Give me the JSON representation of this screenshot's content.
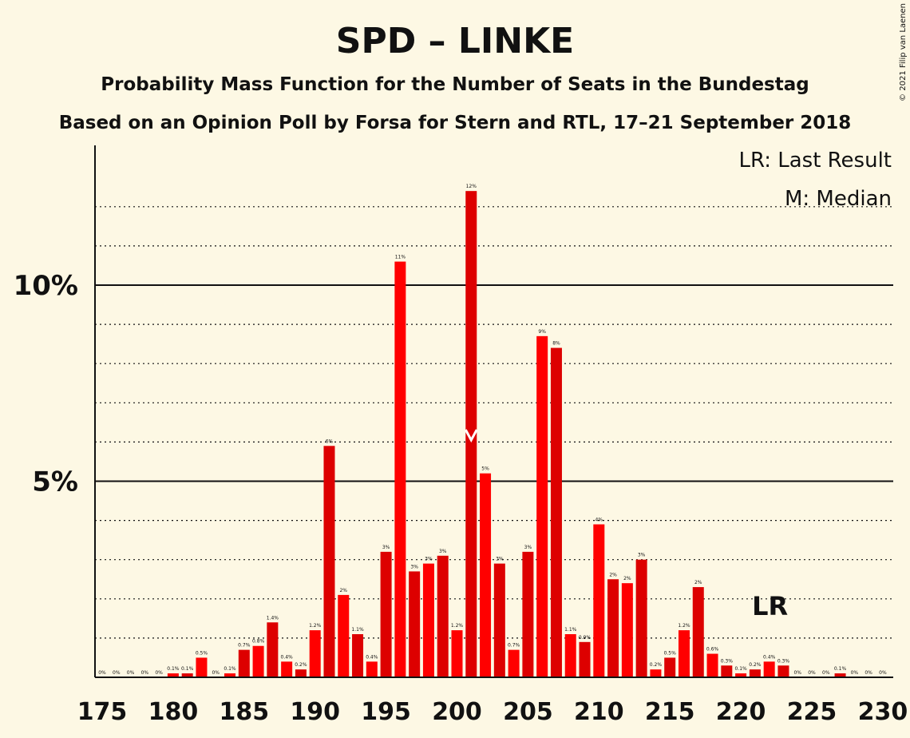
{
  "title": "SPD – LINKE",
  "subtitle1": "Probability Mass Function for the Number of Seats in the Bundestag",
  "subtitle2": "Based on an Opinion Poll by Forsa for Stern and RTL, 17–21 September 2018",
  "copyright": "© 2021 Filip van Laenen",
  "legend": {
    "last_result": "LR: Last Result",
    "median": "M: Median"
  },
  "last_result_label": "LR",
  "colors": {
    "background": "#fdf8e4",
    "bar_even": "#ff0000",
    "bar_odd": "#dd0000",
    "text": "#111111"
  },
  "chart_data": {
    "type": "bar",
    "xlim": [
      175,
      230
    ],
    "ylim": [
      0,
      13.5
    ],
    "x_ticks": [
      "175",
      "180",
      "185",
      "190",
      "195",
      "200",
      "205",
      "210",
      "215",
      "220",
      "225",
      "230"
    ],
    "y_ticks": [
      {
        "value": 5,
        "label": "5%"
      },
      {
        "value": 10,
        "label": "10%"
      }
    ],
    "minor_gridlines": [
      1,
      2,
      3,
      4,
      6,
      7,
      8,
      9,
      11,
      12
    ],
    "median_seat": 201,
    "last_result_seat": 222,
    "x": [
      175,
      176,
      177,
      178,
      179,
      180,
      181,
      182,
      183,
      184,
      185,
      186,
      187,
      188,
      189,
      190,
      191,
      192,
      193,
      194,
      195,
      196,
      197,
      198,
      199,
      200,
      201,
      202,
      203,
      204,
      205,
      206,
      207,
      208,
      209,
      210,
      211,
      212,
      213,
      214,
      215,
      216,
      217,
      218,
      219,
      220,
      221,
      222,
      223,
      224,
      225,
      226,
      227,
      228,
      229,
      230
    ],
    "values": [
      0,
      0,
      0,
      0,
      0,
      0.1,
      0.1,
      0.5,
      0,
      0.1,
      0.7,
      0.8,
      1.4,
      0.4,
      0.2,
      1.2,
      5.9,
      2.1,
      1.1,
      0.4,
      3.2,
      10.6,
      2.7,
      2.9,
      3.1,
      1.2,
      12.4,
      5.2,
      2.9,
      0.7,
      3.2,
      8.7,
      8.4,
      1.1,
      0.9,
      3.9,
      2.5,
      2.4,
      3.0,
      0.2,
      0.5,
      1.2,
      2.3,
      0.6,
      0.3,
      0.1,
      0.2,
      0.4,
      0.3,
      0,
      0,
      0,
      0.1,
      0,
      0,
      0
    ],
    "labels": [
      "0%",
      "0%",
      "0%",
      "0%",
      "0%",
      "0.1%",
      "0.1%",
      "0.5%",
      "0%",
      "0.1%",
      "0.7%",
      "0.8%",
      "1.4%",
      "0.4%",
      "0.2%",
      "1.2%",
      "6%",
      "2%",
      "1.1%",
      "0.4%",
      "3%",
      "11%",
      "3%",
      "3%",
      "3%",
      "1.2%",
      "12%",
      "5%",
      "3%",
      "0.7%",
      "3%",
      "9%",
      "8%",
      "1.1%",
      "0.9%",
      "4%",
      "2%",
      "2%",
      "3%",
      "0.2%",
      "0.5%",
      "1.2%",
      "2%",
      "0.6%",
      "0.3%",
      "0.1%",
      "0.2%",
      "0.4%",
      "0.3%",
      "0%",
      "0%",
      "0%",
      "0.1%",
      "0%",
      "0%",
      "0%"
    ]
  }
}
